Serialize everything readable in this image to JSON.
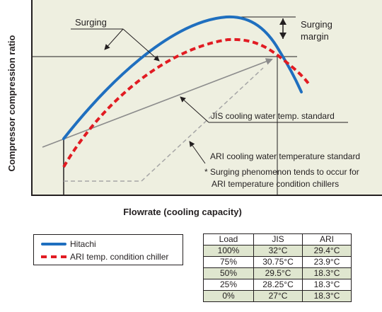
{
  "diagram": {
    "ylabel": "Compressor compression ratio",
    "xlabel": "Flowrate (cooling capacity)",
    "annotations": {
      "surging": "Surging",
      "surging_margin_line1": "Surging",
      "surging_margin_line2": "margin",
      "jis_line": "JIS cooling water temp. standard",
      "ari_line": "ARI cooling water temperature standard",
      "note_line1": "* Surging phenomenon tends to occur for",
      "note_line2": "ARI temperature condition chillers"
    },
    "colors": {
      "hitachi": "#1f6fbf",
      "ari_chiller": "#e11b22",
      "plot_background": "#eeefe0"
    }
  },
  "legend": {
    "items": [
      {
        "label": "Hitachi",
        "style": "solid",
        "color": "#1f6fbf"
      },
      {
        "label": "ARI temp. condition chiller",
        "style": "dashed",
        "color": "#e11b22"
      }
    ]
  },
  "table": {
    "headers": [
      "Load",
      "JIS",
      "ARI"
    ],
    "rows": [
      [
        "100%",
        "32°C",
        "29.4°C"
      ],
      [
        "75%",
        "30.75°C",
        "23.9°C"
      ],
      [
        "50%",
        "29.5°C",
        "18.3°C"
      ],
      [
        "25%",
        "28.25°C",
        "18.3°C"
      ],
      [
        "0%",
        "27°C",
        "18.3°C"
      ]
    ]
  }
}
